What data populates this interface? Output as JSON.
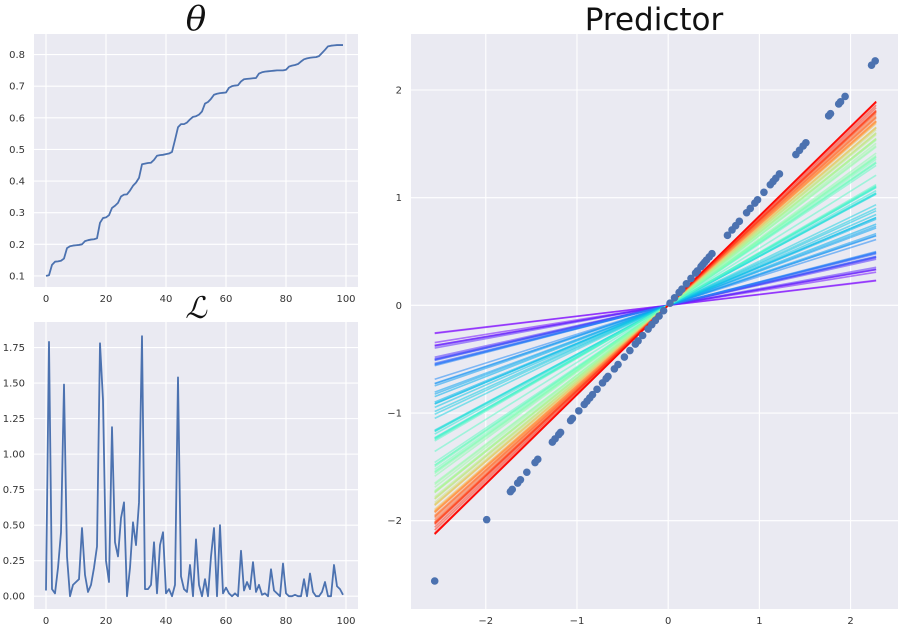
{
  "theme": {
    "panel_bg": "#eaeaf2",
    "grid": "#ffffff",
    "line_color": "#4c72b0",
    "point_color": "#4c72b0"
  },
  "chart_data": [
    {
      "id": "theta",
      "type": "line",
      "title": "θ",
      "xlabel": "",
      "ylabel": "",
      "xlim": [
        -4,
        104
      ],
      "ylim": [
        0.065,
        0.865
      ],
      "xticks": [
        0,
        20,
        40,
        60,
        80,
        100
      ],
      "yticks": [
        0.1,
        0.2,
        0.3,
        0.4,
        0.5,
        0.6,
        0.7,
        0.8
      ],
      "grid": true,
      "x": [
        0,
        1,
        2,
        3,
        4,
        5,
        6,
        7,
        8,
        9,
        10,
        11,
        12,
        13,
        14,
        15,
        16,
        17,
        18,
        19,
        20,
        21,
        22,
        23,
        24,
        25,
        26,
        27,
        28,
        29,
        30,
        31,
        32,
        33,
        34,
        35,
        36,
        37,
        38,
        39,
        40,
        41,
        42,
        43,
        44,
        45,
        46,
        47,
        48,
        49,
        50,
        51,
        52,
        53,
        54,
        55,
        56,
        57,
        58,
        59,
        60,
        61,
        62,
        63,
        64,
        65,
        66,
        67,
        68,
        69,
        70,
        71,
        72,
        73,
        74,
        75,
        76,
        77,
        78,
        79,
        80,
        81,
        82,
        83,
        84,
        85,
        86,
        87,
        88,
        89,
        90,
        91,
        92,
        93,
        94,
        95,
        96,
        97,
        98,
        99
      ],
      "y": [
        0.1,
        0.102,
        0.135,
        0.145,
        0.146,
        0.148,
        0.155,
        0.188,
        0.194,
        0.196,
        0.197,
        0.198,
        0.2,
        0.21,
        0.213,
        0.215,
        0.216,
        0.219,
        0.268,
        0.283,
        0.285,
        0.292,
        0.315,
        0.322,
        0.331,
        0.351,
        0.357,
        0.358,
        0.37,
        0.385,
        0.395,
        0.41,
        0.453,
        0.455,
        0.457,
        0.458,
        0.467,
        0.48,
        0.482,
        0.483,
        0.485,
        0.487,
        0.492,
        0.53,
        0.57,
        0.58,
        0.58,
        0.585,
        0.595,
        0.603,
        0.605,
        0.61,
        0.62,
        0.645,
        0.65,
        0.66,
        0.673,
        0.676,
        0.678,
        0.679,
        0.68,
        0.695,
        0.7,
        0.702,
        0.703,
        0.715,
        0.722,
        0.723,
        0.724,
        0.725,
        0.726,
        0.74,
        0.744,
        0.746,
        0.747,
        0.748,
        0.749,
        0.75,
        0.75,
        0.75,
        0.752,
        0.762,
        0.765,
        0.767,
        0.77,
        0.778,
        0.785,
        0.788,
        0.79,
        0.791,
        0.792,
        0.795,
        0.805,
        0.815,
        0.826,
        0.828,
        0.829,
        0.83,
        0.83,
        0.83
      ]
    },
    {
      "id": "loss",
      "type": "line",
      "title": "ℒ",
      "xlabel": "",
      "ylabel": "",
      "xlim": [
        -4,
        104
      ],
      "ylim": [
        -0.09,
        1.93
      ],
      "xticks": [
        0,
        20,
        40,
        60,
        80,
        100
      ],
      "yticks": [
        0.0,
        0.25,
        0.5,
        0.75,
        1.0,
        1.25,
        1.5,
        1.75
      ],
      "ytick_labels": [
        "0.00",
        "0.25",
        "0.50",
        "0.75",
        "1.00",
        "1.25",
        "1.50",
        "1.75"
      ],
      "grid": true,
      "x": [
        0,
        1,
        2,
        3,
        4,
        5,
        6,
        7,
        8,
        9,
        10,
        11,
        12,
        13,
        14,
        15,
        16,
        17,
        18,
        19,
        20,
        21,
        22,
        23,
        24,
        25,
        26,
        27,
        28,
        29,
        30,
        31,
        32,
        33,
        34,
        35,
        36,
        37,
        38,
        39,
        40,
        41,
        42,
        43,
        44,
        45,
        46,
        47,
        48,
        49,
        50,
        51,
        52,
        53,
        54,
        55,
        56,
        57,
        58,
        59,
        60,
        61,
        62,
        63,
        64,
        65,
        66,
        67,
        68,
        69,
        70,
        71,
        72,
        73,
        74,
        75,
        76,
        77,
        78,
        79,
        80,
        81,
        82,
        83,
        84,
        85,
        86,
        87,
        88,
        89,
        90,
        91,
        92,
        93,
        94,
        95,
        96,
        97,
        98,
        99
      ],
      "y": [
        0.04,
        1.79,
        0.05,
        0.02,
        0.2,
        0.45,
        1.49,
        0.28,
        0.0,
        0.08,
        0.1,
        0.12,
        0.48,
        0.15,
        0.03,
        0.08,
        0.2,
        0.35,
        1.78,
        1.38,
        0.25,
        0.1,
        1.19,
        0.38,
        0.28,
        0.55,
        0.66,
        0.0,
        0.2,
        0.52,
        0.36,
        0.66,
        1.83,
        0.05,
        0.05,
        0.08,
        0.38,
        0.02,
        0.36,
        0.45,
        0.02,
        0.05,
        0.0,
        0.08,
        1.54,
        0.14,
        0.05,
        0.03,
        0.22,
        0.0,
        0.4,
        0.08,
        0.0,
        0.12,
        0.0,
        0.28,
        0.48,
        0.0,
        0.5,
        0.02,
        0.06,
        0.02,
        0.0,
        0.02,
        0.0,
        0.32,
        0.04,
        0.1,
        0.05,
        0.24,
        0.03,
        0.08,
        0.01,
        0.02,
        0.0,
        0.19,
        0.04,
        0.02,
        0.0,
        0.23,
        0.02,
        0.0,
        0.0,
        0.01,
        0.0,
        0.0,
        0.12,
        0.0,
        0.16,
        0.03,
        0.0,
        0.0,
        0.03,
        0.1,
        0.0,
        0.0,
        0.22,
        0.07,
        0.05,
        0.01
      ]
    },
    {
      "id": "predictor",
      "type": "scatter",
      "title": "Predictor",
      "xlabel": "",
      "ylabel": "",
      "xlim": [
        -2.82,
        2.52
      ],
      "ylim": [
        -2.82,
        2.52
      ],
      "xticks": [
        -2,
        -1,
        0,
        1,
        2
      ],
      "yticks": [
        -2,
        -1,
        0,
        1,
        2
      ],
      "grid": true,
      "line_x_range": [
        -2.56,
        2.28
      ],
      "points": {
        "x": [
          -2.56,
          -1.99,
          -1.73,
          -1.71,
          -1.65,
          -1.62,
          -1.55,
          -1.46,
          -1.43,
          -1.27,
          -1.24,
          -1.2,
          -1.18,
          -1.07,
          -1.05,
          -0.98,
          -0.92,
          -0.89,
          -0.86,
          -0.83,
          -0.78,
          -0.72,
          -0.68,
          -0.66,
          -0.59,
          -0.55,
          -0.48,
          -0.42,
          -0.36,
          -0.33,
          -0.28,
          -0.22,
          -0.18,
          -0.14,
          -0.1,
          -0.05,
          0.02,
          0.07,
          0.12,
          0.15,
          0.2,
          0.25,
          0.3,
          0.32,
          0.36,
          0.38,
          0.4,
          0.42,
          0.45,
          0.48,
          0.65,
          0.7,
          0.74,
          0.78,
          0.86,
          0.9,
          0.95,
          0.98,
          1.05,
          1.12,
          1.15,
          1.18,
          1.22,
          1.4,
          1.44,
          1.48,
          1.51,
          1.76,
          1.78,
          1.87,
          1.89,
          1.94,
          2.23,
          2.27
        ],
        "y": [
          -2.56,
          -1.99,
          -1.73,
          -1.71,
          -1.65,
          -1.62,
          -1.55,
          -1.46,
          -1.43,
          -1.27,
          -1.24,
          -1.2,
          -1.18,
          -1.07,
          -1.05,
          -0.98,
          -0.92,
          -0.89,
          -0.86,
          -0.83,
          -0.78,
          -0.72,
          -0.68,
          -0.66,
          -0.59,
          -0.55,
          -0.48,
          -0.42,
          -0.36,
          -0.33,
          -0.28,
          -0.22,
          -0.18,
          -0.14,
          -0.1,
          -0.05,
          0.02,
          0.07,
          0.12,
          0.15,
          0.2,
          0.25,
          0.3,
          0.32,
          0.36,
          0.38,
          0.4,
          0.42,
          0.45,
          0.48,
          0.65,
          0.7,
          0.74,
          0.78,
          0.86,
          0.9,
          0.95,
          0.98,
          1.05,
          1.12,
          1.15,
          1.18,
          1.22,
          1.4,
          1.44,
          1.48,
          1.51,
          1.76,
          1.78,
          1.87,
          1.89,
          1.94,
          2.23,
          2.27
        ]
      },
      "line_slopes": [
        0.1,
        0.102,
        0.135,
        0.145,
        0.146,
        0.148,
        0.155,
        0.188,
        0.194,
        0.196,
        0.197,
        0.198,
        0.2,
        0.21,
        0.213,
        0.215,
        0.216,
        0.219,
        0.268,
        0.283,
        0.285,
        0.292,
        0.315,
        0.322,
        0.331,
        0.351,
        0.357,
        0.358,
        0.37,
        0.385,
        0.395,
        0.41,
        0.453,
        0.455,
        0.457,
        0.458,
        0.467,
        0.48,
        0.482,
        0.483,
        0.485,
        0.487,
        0.492,
        0.53,
        0.57,
        0.58,
        0.58,
        0.585,
        0.595,
        0.603,
        0.605,
        0.61,
        0.62,
        0.645,
        0.65,
        0.66,
        0.673,
        0.676,
        0.678,
        0.679,
        0.68,
        0.695,
        0.7,
        0.702,
        0.703,
        0.715,
        0.722,
        0.723,
        0.724,
        0.725,
        0.726,
        0.74,
        0.744,
        0.746,
        0.747,
        0.748,
        0.749,
        0.75,
        0.75,
        0.75,
        0.752,
        0.762,
        0.765,
        0.767,
        0.77,
        0.778,
        0.785,
        0.788,
        0.79,
        0.791,
        0.792,
        0.795,
        0.805,
        0.815,
        0.826,
        0.828,
        0.829,
        0.83,
        0.83,
        0.83
      ],
      "line_scale": 1.0,
      "line_colormap": "rainbow"
    }
  ]
}
